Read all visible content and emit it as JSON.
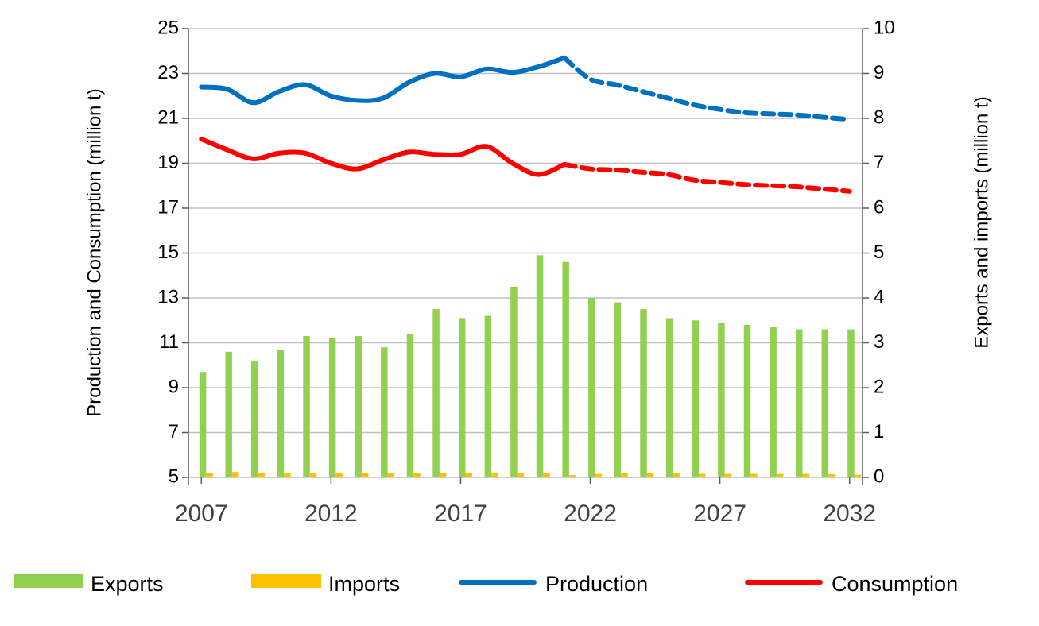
{
  "chart_data": {
    "type": "combo",
    "x": [
      2007,
      2008,
      2009,
      2010,
      2011,
      2012,
      2013,
      2014,
      2015,
      2016,
      2017,
      2018,
      2019,
      2020,
      2021,
      2022,
      2023,
      2024,
      2025,
      2026,
      2027,
      2028,
      2029,
      2030,
      2031,
      2032
    ],
    "xlim": [
      2006.5,
      2032.5
    ],
    "xticks": [
      2007,
      2012,
      2017,
      2022,
      2027,
      2032
    ],
    "ylim": [
      5,
      25
    ],
    "yticks": [
      5,
      7,
      9,
      11,
      13,
      15,
      17,
      19,
      21,
      23,
      25
    ],
    "y2lim": [
      0,
      10
    ],
    "y2ticks": [
      0,
      1,
      2,
      3,
      4,
      5,
      6,
      7,
      8,
      9,
      10
    ],
    "ylabel": "Production and Consumption (million t)",
    "y2label": "Exports and imports (million t)",
    "grid": true,
    "legend": "bottom",
    "series": [
      {
        "name": "Exports",
        "type": "bar",
        "axis": "y2",
        "color": "#92d050",
        "values": [
          2.35,
          2.8,
          2.6,
          2.85,
          3.15,
          3.1,
          3.15,
          2.9,
          3.2,
          3.75,
          3.55,
          3.6,
          4.25,
          4.95,
          4.8,
          4.0,
          3.9,
          3.75,
          3.55,
          3.5,
          3.45,
          3.4,
          3.35,
          3.3,
          3.3,
          3.3
        ]
      },
      {
        "name": "Imports",
        "type": "bar",
        "axis": "y2",
        "color": "#ffc000",
        "values": [
          0.1,
          0.12,
          0.1,
          0.1,
          0.1,
          0.1,
          0.1,
          0.1,
          0.1,
          0.1,
          0.11,
          0.11,
          0.1,
          0.1,
          0.05,
          0.08,
          0.1,
          0.1,
          0.1,
          0.08,
          0.08,
          0.08,
          0.08,
          0.08,
          0.07,
          0.06
        ]
      },
      {
        "name": "Production",
        "type": "line",
        "color": "#0070c0",
        "dashed_from_x": 2021,
        "values": [
          22.4,
          22.3,
          21.7,
          22.2,
          22.5,
          22.0,
          21.8,
          21.9,
          22.6,
          23.0,
          22.85,
          23.2,
          23.05,
          23.3,
          23.7,
          22.75,
          22.5,
          22.2,
          21.9,
          21.6,
          21.4,
          21.25,
          21.2,
          21.15,
          21.05,
          20.95
        ]
      },
      {
        "name": "Consumption",
        "type": "line",
        "color": "#ff0000",
        "dashed_from_x": 2021,
        "values": [
          20.08,
          19.6,
          19.2,
          19.45,
          19.45,
          19.0,
          18.75,
          19.15,
          19.5,
          19.4,
          19.4,
          19.75,
          19.0,
          18.5,
          18.95,
          18.75,
          18.7,
          18.6,
          18.5,
          18.25,
          18.15,
          18.05,
          18.0,
          17.95,
          17.85,
          17.75
        ]
      }
    ]
  }
}
